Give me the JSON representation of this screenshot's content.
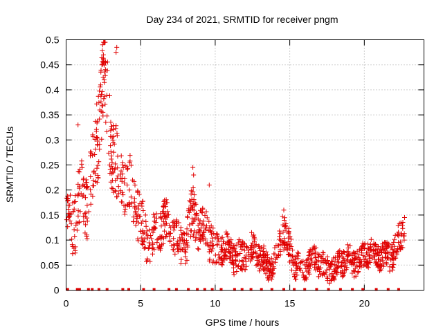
{
  "chart_data": {
    "type": "scatter",
    "title": "Day 234 of 2021, SRMTID for receiver pngm",
    "xlabel": "GPS time / hours",
    "ylabel": "SRMTID / TECUs",
    "xlim": [
      0,
      24
    ],
    "ylim": [
      0,
      0.5
    ],
    "x_ticks": [
      0,
      5,
      10,
      15,
      20
    ],
    "x_tick_labels": [
      "0",
      "5",
      "10",
      "15",
      "20"
    ],
    "y_ticks": [
      0,
      0.05,
      0.1,
      0.15,
      0.2,
      0.25,
      0.3,
      0.35,
      0.4,
      0.45,
      0.5
    ],
    "y_tick_labels": [
      "0",
      "0.05",
      "0.1",
      "0.15",
      "0.2",
      "0.25",
      "0.3",
      "0.35",
      "0.4",
      "0.45",
      "0.5"
    ],
    "grid": true,
    "series": [
      {
        "name": "SRMTID",
        "marker": "plus",
        "color": "#e00000",
        "envelope_x": [
          0,
          0.5,
          1,
          1.5,
          2,
          2.5,
          3,
          3.5,
          4,
          4.5,
          5,
          6,
          7,
          8,
          8.5,
          9,
          9.5,
          10,
          11,
          12,
          13,
          14,
          14.5,
          15,
          16,
          17,
          18,
          19,
          20,
          21,
          22,
          22.7
        ],
        "envelope_y": [
          0.13,
          0.1,
          0.2,
          0.22,
          0.28,
          0.38,
          0.3,
          0.26,
          0.22,
          0.16,
          0.13,
          0.11,
          0.12,
          0.1,
          0.13,
          0.11,
          0.14,
          0.08,
          0.07,
          0.08,
          0.06,
          0.06,
          0.11,
          0.07,
          0.05,
          0.05,
          0.05,
          0.05,
          0.08,
          0.06,
          0.09,
          0.11
        ],
        "spread_y": [
          0.05,
          0.06,
          0.07,
          0.07,
          0.08,
          0.09,
          0.08,
          0.07,
          0.06,
          0.05,
          0.05,
          0.04,
          0.04,
          0.04,
          0.05,
          0.04,
          0.05,
          0.03,
          0.03,
          0.03,
          0.025,
          0.025,
          0.04,
          0.03,
          0.025,
          0.025,
          0.025,
          0.025,
          0.025,
          0.025,
          0.03,
          0.03
        ],
        "data_end_hour": 22.7,
        "point_count": 1400,
        "notable_points": [
          {
            "x": 2.45,
            "y": 0.49
          },
          {
            "x": 2.5,
            "y": 0.47
          },
          {
            "x": 3.4,
            "y": 0.485
          },
          {
            "x": 3.35,
            "y": 0.475
          },
          {
            "x": 2.4,
            "y": 0.45
          },
          {
            "x": 2.55,
            "y": 0.42
          },
          {
            "x": 0.8,
            "y": 0.33
          },
          {
            "x": 8.5,
            "y": 0.245
          },
          {
            "x": 8.55,
            "y": 0.23
          },
          {
            "x": 9.6,
            "y": 0.21
          },
          {
            "x": 14.6,
            "y": 0.16
          },
          {
            "x": 22.7,
            "y": 0.145
          }
        ]
      },
      {
        "name": "zero-markers",
        "marker": "square",
        "color": "#e00000",
        "x": [
          0.1,
          0.75,
          0.9,
          1.5,
          1.75,
          2.2,
          2.75,
          3.8,
          4.2,
          5.2,
          5.9,
          6.9,
          7.4,
          8.2,
          8.8,
          9.3,
          9.8,
          10.4,
          11.3,
          11.8,
          12.4,
          13.1,
          13.8,
          14.6,
          15.3,
          16.0,
          16.8,
          17.6,
          18.4,
          19.2,
          19.9,
          20.8,
          21.6,
          22.3
        ]
      }
    ]
  }
}
